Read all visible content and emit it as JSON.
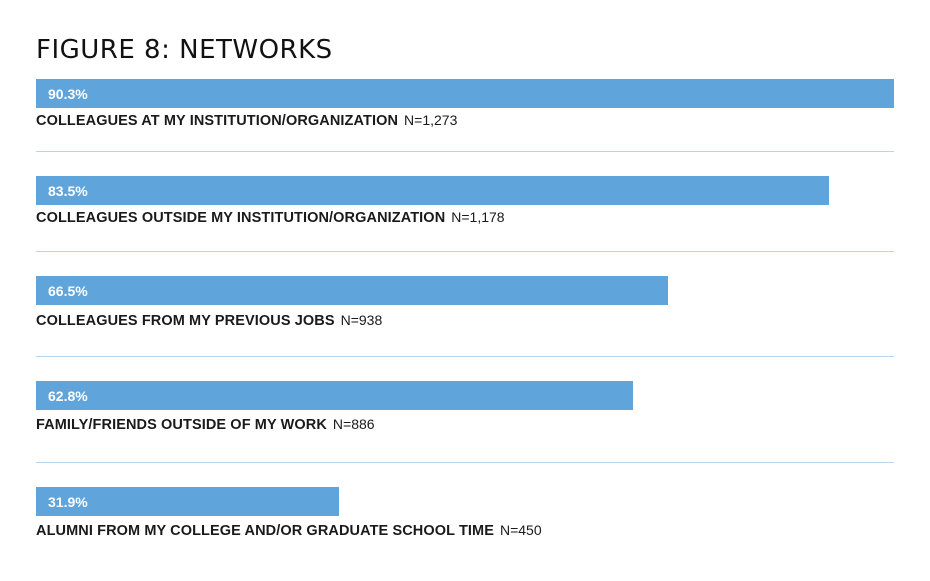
{
  "chart_data": {
    "type": "bar",
    "orientation": "horizontal",
    "title": "FIGURE 8: NETWORKS",
    "unit": "%",
    "xlim": [
      0,
      90.3
    ],
    "bar_color": "#5fa5db",
    "divider_color": "#b9d3ea",
    "categories": [
      "COLLEAGUES AT MY INSTITUTION/ORGANIZATION",
      "COLLEAGUES OUTSIDE MY INSTITUTION/ORGANIZATION",
      "COLLEAGUES FROM MY PREVIOUS JOBS",
      "FAMILY/FRIENDS OUTSIDE OF MY WORK",
      "ALUMNI FROM MY COLLEGE AND/OR GRADUATE SCHOOL TIME"
    ],
    "values": [
      90.3,
      83.5,
      66.5,
      62.8,
      31.9
    ],
    "value_labels": [
      "90.3%",
      "83.5%",
      "66.5%",
      "62.8%",
      "31.9%"
    ],
    "n_labels": [
      "N=1,273",
      "N=1,178",
      "N=938",
      "N=886",
      "N=450"
    ]
  }
}
